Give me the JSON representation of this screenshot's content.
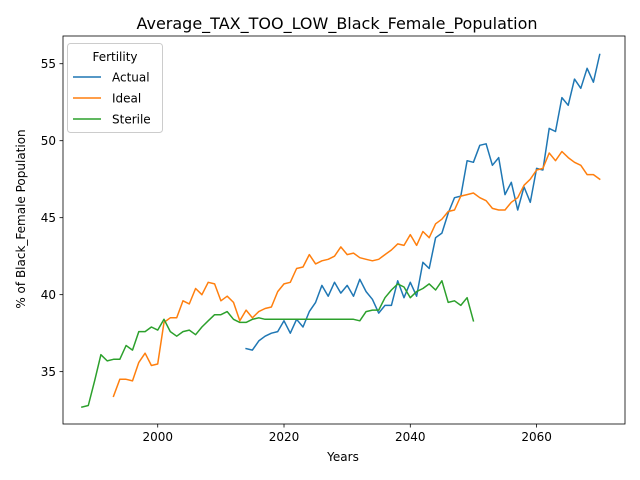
{
  "chart_data": {
    "type": "line",
    "title": "Average_TAX_TOO_LOW_Black_Female_Population",
    "xlabel": "Years",
    "ylabel": "% of Black_Female Population",
    "xlim": [
      1985.0,
      2074.0
    ],
    "ylim": [
      31.6,
      56.8
    ],
    "xticks": [
      2000,
      2020,
      2040,
      2060
    ],
    "yticks": [
      35,
      40,
      45,
      50,
      55
    ],
    "grid": false,
    "legend": {
      "title": "Fertility",
      "position": "top-left"
    },
    "series": [
      {
        "name": "Actual",
        "color": "#1f77b4",
        "x": [
          2014,
          2015,
          2016,
          2017,
          2018,
          2019,
          2020,
          2021,
          2022,
          2023,
          2024,
          2025,
          2026,
          2027,
          2028,
          2029,
          2030,
          2031,
          2032,
          2033,
          2034,
          2035,
          2036,
          2037,
          2038,
          2039,
          2040,
          2041,
          2042,
          2043,
          2044,
          2045,
          2046,
          2047,
          2048,
          2049,
          2050,
          2051,
          2052,
          2053,
          2054,
          2055,
          2056,
          2057,
          2058,
          2059,
          2060,
          2061,
          2062,
          2063,
          2064,
          2065,
          2066,
          2067,
          2068,
          2069,
          2070
        ],
        "y": [
          36.5,
          36.4,
          37.0,
          37.3,
          37.5,
          37.6,
          38.3,
          37.5,
          38.4,
          37.9,
          38.9,
          39.5,
          40.6,
          39.9,
          40.8,
          40.1,
          40.6,
          39.9,
          41.0,
          40.2,
          39.7,
          38.8,
          39.3,
          39.3,
          40.9,
          39.8,
          40.8,
          39.9,
          42.1,
          41.7,
          43.7,
          44.0,
          45.3,
          46.3,
          46.4,
          48.7,
          48.6,
          49.7,
          49.8,
          48.4,
          48.9,
          46.5,
          47.3,
          45.5,
          47.0,
          46.0,
          48.2,
          48.1,
          50.8,
          50.6,
          52.8,
          52.3,
          54.0,
          53.4,
          54.7,
          53.8,
          55.6
        ]
      },
      {
        "name": "Ideal",
        "color": "#ff7f0e",
        "x": [
          1993,
          1994,
          1995,
          1996,
          1997,
          1998,
          1999,
          2000,
          2001,
          2002,
          2003,
          2004,
          2005,
          2006,
          2007,
          2008,
          2009,
          2010,
          2011,
          2012,
          2013,
          2014,
          2015,
          2016,
          2017,
          2018,
          2019,
          2020,
          2021,
          2022,
          2023,
          2024,
          2025,
          2026,
          2027,
          2028,
          2029,
          2030,
          2031,
          2032,
          2033,
          2034,
          2035,
          2036,
          2037,
          2038,
          2039,
          2040,
          2041,
          2042,
          2043,
          2044,
          2045,
          2046,
          2047,
          2048,
          2049,
          2050,
          2051,
          2052,
          2053,
          2054,
          2055,
          2056,
          2057,
          2058,
          2059,
          2060,
          2061,
          2062,
          2063,
          2064,
          2065,
          2066,
          2067,
          2068,
          2069,
          2070
        ],
        "y": [
          33.4,
          34.5,
          34.5,
          34.4,
          35.6,
          36.2,
          35.4,
          35.5,
          38.2,
          38.5,
          38.5,
          39.6,
          39.4,
          40.4,
          40.0,
          40.8,
          40.7,
          39.6,
          39.9,
          39.5,
          38.3,
          39.0,
          38.5,
          38.9,
          39.1,
          39.2,
          40.2,
          40.7,
          40.8,
          41.7,
          41.8,
          42.6,
          42.0,
          42.2,
          42.3,
          42.5,
          43.1,
          42.6,
          42.7,
          42.4,
          42.3,
          42.2,
          42.3,
          42.6,
          42.9,
          43.3,
          43.2,
          43.9,
          43.2,
          44.1,
          43.7,
          44.6,
          44.9,
          45.4,
          45.5,
          46.4,
          46.5,
          46.6,
          46.3,
          46.1,
          45.6,
          45.5,
          45.5,
          46.0,
          46.3,
          47.1,
          47.5,
          48.1,
          48.2,
          49.2,
          48.7,
          49.3,
          48.9,
          48.6,
          48.4,
          47.8,
          47.8,
          47.5
        ]
      },
      {
        "name": "Sterile",
        "color": "#2ca02c",
        "x": [
          1988,
          1989,
          1990,
          1991,
          1992,
          1993,
          1994,
          1995,
          1996,
          1997,
          1998,
          1999,
          2000,
          2001,
          2002,
          2003,
          2004,
          2005,
          2006,
          2007,
          2008,
          2009,
          2010,
          2011,
          2012,
          2013,
          2014,
          2015,
          2016,
          2017,
          2018,
          2019,
          2020,
          2021,
          2022,
          2023,
          2024,
          2025,
          2026,
          2027,
          2028,
          2029,
          2030,
          2031,
          2032,
          2033,
          2034,
          2035,
          2036,
          2037,
          2038,
          2039,
          2040,
          2041,
          2042,
          2043,
          2044,
          2045,
          2046,
          2047,
          2048,
          2049,
          2050
        ],
        "y": [
          32.7,
          32.8,
          34.4,
          36.1,
          35.7,
          35.8,
          35.8,
          36.7,
          36.4,
          37.6,
          37.6,
          37.9,
          37.7,
          38.4,
          37.6,
          37.3,
          37.6,
          37.7,
          37.4,
          37.9,
          38.3,
          38.7,
          38.7,
          38.9,
          38.4,
          38.2,
          38.2,
          38.4,
          38.5,
          38.4,
          38.4,
          38.4,
          38.4,
          38.4,
          38.4,
          38.4,
          38.4,
          38.4,
          38.4,
          38.4,
          38.4,
          38.4,
          38.4,
          38.4,
          38.3,
          38.9,
          39.0,
          39.0,
          39.8,
          40.3,
          40.7,
          40.5,
          39.8,
          40.2,
          40.4,
          40.7,
          40.3,
          40.9,
          39.5,
          39.6,
          39.3,
          39.8,
          38.3
        ]
      }
    ]
  }
}
